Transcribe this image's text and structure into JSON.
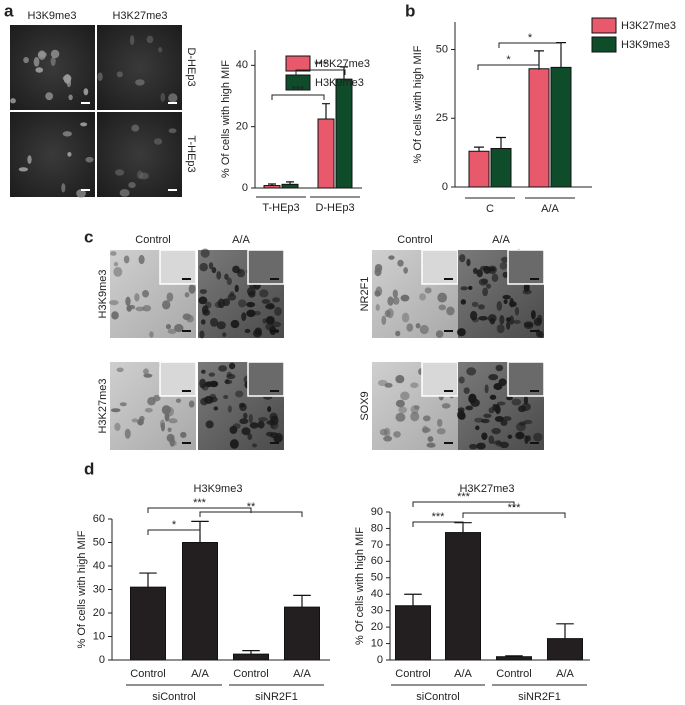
{
  "panel_letters": [
    "a",
    "b",
    "c",
    "d"
  ],
  "panel_a_images": {
    "columns": [
      "H3K9me3",
      "H3K27me3"
    ],
    "rows": [
      "D-HEp3",
      "T-HEp3"
    ]
  },
  "panel_c_images": {
    "left": {
      "columns": [
        "Control",
        "A/A"
      ],
      "rows": [
        "H3K9me3",
        "H3K27me3"
      ]
    },
    "right": {
      "columns": [
        "Control",
        "A/A"
      ],
      "rows": [
        "NR2F1",
        "SOX9"
      ]
    }
  },
  "chart_data": [
    {
      "type": "bar",
      "ylabel": "% Of cells with high MIF",
      "categories": [
        "T-HEp3",
        "D-HEp3"
      ],
      "series": [
        {
          "name": "H3K27me3",
          "color": "#e8596b",
          "values": [
            0.8,
            22.5
          ],
          "errors": [
            0.5,
            5
          ]
        },
        {
          "name": "H3K9me3",
          "color": "#0f4d2a",
          "values": [
            1.2,
            35.5
          ],
          "errors": [
            0.8,
            4
          ]
        }
      ],
      "ylim": [
        0,
        45
      ],
      "yticks": [
        0,
        20,
        40
      ],
      "annotations": [
        "***",
        "***"
      ]
    },
    {
      "type": "bar",
      "ylabel": "% Of cells with high MIF",
      "categories": [
        "C",
        "A/A"
      ],
      "series": [
        {
          "name": "H3K27me3",
          "color": "#e8596b",
          "values": [
            13,
            43
          ],
          "errors": [
            1.5,
            6.5
          ]
        },
        {
          "name": "H3K9me3",
          "color": "#0f4d2a",
          "values": [
            14,
            43.5
          ],
          "errors": [
            4,
            9
          ]
        }
      ],
      "ylim": [
        0,
        60
      ],
      "yticks": [
        0,
        25,
        50
      ],
      "annotations": [
        "*",
        "*"
      ]
    },
    {
      "type": "bar",
      "title": "H3K9me3",
      "ylabel": "% Of cells with high MIF",
      "categories": [
        "Control",
        "A/A",
        "Control",
        "A/A"
      ],
      "groups": [
        "siControl",
        "siNR2F1"
      ],
      "series": [
        {
          "color": "#231f20",
          "values": [
            31,
            50,
            2.5,
            22.5
          ],
          "errors": [
            6,
            9,
            1.5,
            5
          ]
        }
      ],
      "ylim": [
        0,
        60
      ],
      "yticks": [
        0,
        10,
        20,
        30,
        40,
        50,
        60
      ],
      "annotations": [
        "*",
        "***",
        "**"
      ]
    },
    {
      "type": "bar",
      "title": "H3K27me3",
      "ylabel": "% Of cells with high MIF",
      "categories": [
        "Control",
        "A/A",
        "Control",
        "A/A"
      ],
      "groups": [
        "siControl",
        "siNR2F1"
      ],
      "series": [
        {
          "color": "#231f20",
          "values": [
            33,
            77.5,
            2,
            13
          ],
          "errors": [
            7,
            6,
            0.5,
            9
          ]
        }
      ],
      "ylim": [
        0,
        90
      ],
      "yticks": [
        0,
        10,
        20,
        30,
        40,
        50,
        60,
        70,
        80,
        90
      ],
      "annotations": [
        "***",
        "***",
        "***"
      ]
    }
  ]
}
